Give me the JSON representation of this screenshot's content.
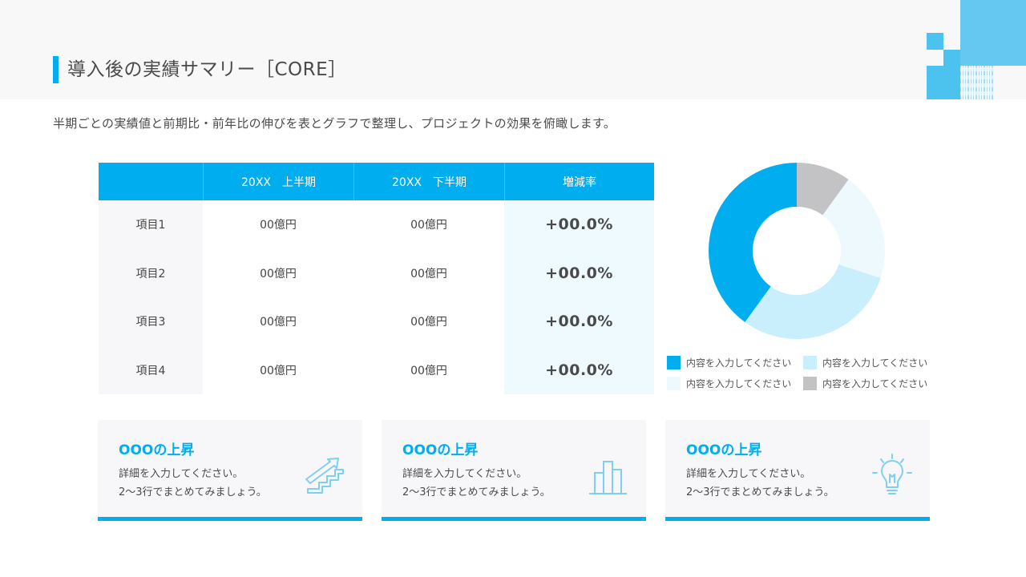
{
  "header": {
    "title": "導入後の実績サマリー［CORE］",
    "subtitle": "半期ごとの実績値と前期比・前年比の伸びを表とグラフで整理し、プロジェクトの効果を俯瞰します。"
  },
  "colors": {
    "accent": "#00aeef",
    "light_blue": "#c9effd",
    "very_light_blue": "#eef9fe",
    "gray": "#c3c3c5",
    "header_bg": "#f8f8f9",
    "card_bg": "#f7f7f9"
  },
  "table": {
    "headers": [
      "",
      "20XX　上半期",
      "20XX　下半期",
      "増減率"
    ],
    "rows": [
      {
        "label": "項目1",
        "h1": "00億円",
        "h2": "00億円",
        "rate": "+00.0%"
      },
      {
        "label": "項目2",
        "h1": "00億円",
        "h2": "00億円",
        "rate": "+00.0%"
      },
      {
        "label": "項目3",
        "h1": "00億円",
        "h2": "00億円",
        "rate": "+00.0%"
      },
      {
        "label": "項目4",
        "h1": "00億円",
        "h2": "00億円",
        "rate": "+00.0%"
      }
    ]
  },
  "chart_data": {
    "type": "pie",
    "subtype": "donut",
    "title": "",
    "categories": [
      "内容を入力してください",
      "内容を入力してください",
      "内容を入力してください",
      "内容を入力してください"
    ],
    "values": [
      40,
      30,
      20,
      10
    ],
    "colors": [
      "#00aeef",
      "#c9effd",
      "#eef9fe",
      "#c3c3c5"
    ],
    "legend_position": "bottom",
    "start_angle_deg": 0,
    "direction": "counterclockwise-from-top-in-reading; slices drawn: gray 0-36°, very light 36-108°, light blue 108-216°, blue 216-360°"
  },
  "legend": {
    "items": [
      {
        "label": "内容を入力してください",
        "color": "#00aeef"
      },
      {
        "label": "内容を入力してください",
        "color": "#c9effd"
      },
      {
        "label": "内容を入力してください",
        "color": "#eef9fe"
      },
      {
        "label": "内容を入力してください",
        "color": "#c3c3c5"
      }
    ]
  },
  "cards": [
    {
      "title": "OOOの上昇",
      "line1": "詳細を入力してください。",
      "line2": "2〜3行でまとめてみましょう。",
      "icon": "stairs-arrow-icon"
    },
    {
      "title": "OOOの上昇",
      "line1": "詳細を入力してください。",
      "line2": "2〜3行でまとめてみましょう。",
      "icon": "bar-chart-icon"
    },
    {
      "title": "OOOの上昇",
      "line1": "詳細を入力してください。",
      "line2": "2〜3行でまとめてみましょう。",
      "icon": "lightbulb-icon"
    }
  ]
}
